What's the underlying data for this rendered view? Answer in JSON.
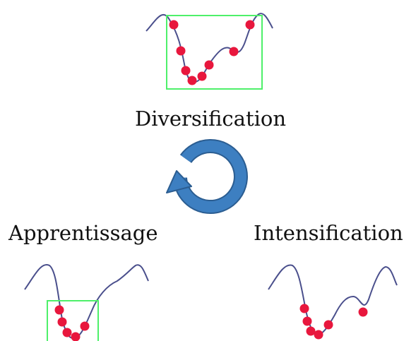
{
  "labels": {
    "diversification": "Diversification",
    "learning": "Apprentissage",
    "intensification": "Intensification"
  },
  "colors": {
    "curve": "#4a4f8c",
    "sample_point": "#e8173d",
    "selection_box": "#4ef06a",
    "cycle_arrow_fill": "#3d7fc1",
    "cycle_arrow_stroke": "#2b5d91",
    "text": "#111111"
  },
  "icons": {
    "cycle": "circular-arrow-icon"
  }
}
